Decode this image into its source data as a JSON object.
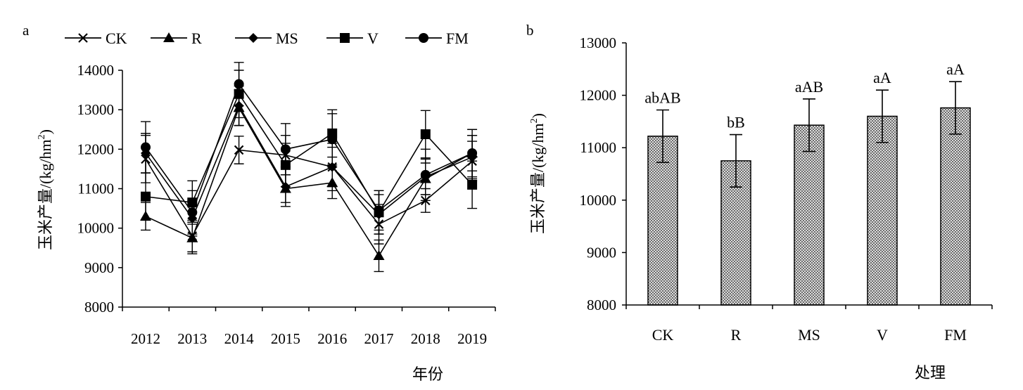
{
  "chart_data": [
    {
      "panel_label": "a",
      "type": "line",
      "categories": [
        "2012",
        "2013",
        "2014",
        "2015",
        "2016",
        "2017",
        "2018",
        "2019"
      ],
      "xlabel": "年份",
      "ylabel": "玉米产量/(kg/hm²)",
      "ylabel_main": "玉米产量/(kg/hm",
      "ylabel_sup": "2",
      "ylabel_tail": ")",
      "ylim": [
        8000,
        14000
      ],
      "yticks": [
        "8000",
        "9000",
        "10000",
        "11000",
        "12000",
        "13000",
        "14000"
      ],
      "legend_position": "top",
      "series": [
        {
          "name": "CK",
          "marker": "x",
          "values": [
            11750,
            9800,
            11980,
            11850,
            11550,
            10100,
            10700,
            11700
          ],
          "errors": [
            600,
            400,
            350,
            500,
            600,
            500,
            300,
            500
          ]
        },
        {
          "name": "R",
          "marker": "triangle",
          "values": [
            10300,
            9750,
            13050,
            11000,
            11150,
            9300,
            11250,
            11900
          ],
          "errors": [
            350,
            400,
            450,
            350,
            400,
            400,
            400,
            450
          ]
        },
        {
          "name": "MS",
          "marker": "diamond",
          "values": [
            11900,
            10250,
            13100,
            11050,
            11550,
            10350,
            11300,
            11800
          ],
          "errors": [
            500,
            450,
            500,
            500,
            500,
            500,
            450,
            550
          ]
        },
        {
          "name": "V",
          "marker": "square",
          "values": [
            10800,
            10650,
            13400,
            11600,
            12400,
            10400,
            12380,
            11100
          ],
          "errors": [
            600,
            550,
            600,
            550,
            600,
            550,
            600,
            600
          ]
        },
        {
          "name": "FM",
          "marker": "circle",
          "values": [
            12050,
            10400,
            13650,
            12000,
            12250,
            10450,
            11350,
            11900
          ],
          "errors": [
            650,
            550,
            550,
            650,
            650,
            500,
            650,
            600
          ]
        }
      ]
    },
    {
      "panel_label": "b",
      "type": "bar",
      "categories": [
        "CK",
        "R",
        "MS",
        "V",
        "FM"
      ],
      "values": [
        11220,
        10750,
        11430,
        11600,
        11760
      ],
      "errors": [
        500,
        500,
        500,
        500,
        500
      ],
      "annotations": [
        "abAB",
        "bB",
        "aAB",
        "aA",
        "aA"
      ],
      "xlabel": "处理",
      "ylabel": "玉米产量/(kg/hm²)",
      "ylabel_main": "玉米产量/(kg/hm",
      "ylabel_sup": "2",
      "ylabel_tail": ")",
      "ylim": [
        8000,
        13000
      ],
      "yticks": [
        "8000",
        "9000",
        "10000",
        "11000",
        "12000",
        "13000"
      ],
      "bar_fill": "#b0b0b0"
    }
  ]
}
